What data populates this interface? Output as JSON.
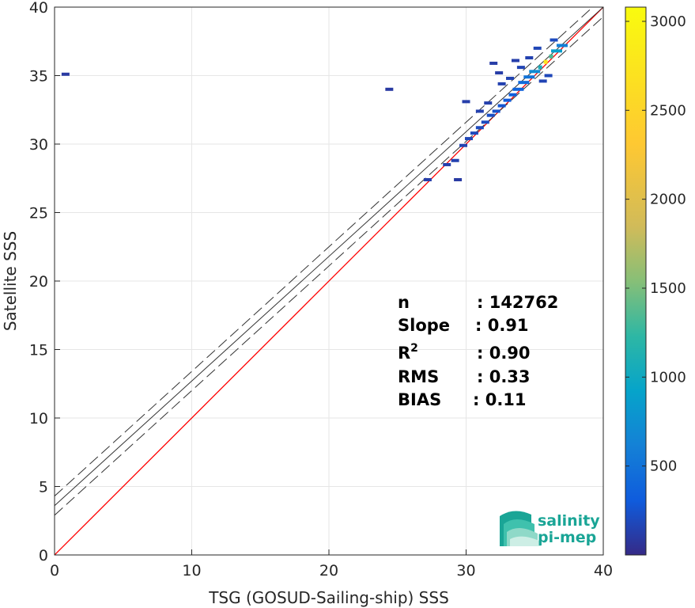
{
  "chart_data": {
    "type": "heatmap",
    "title": "",
    "xlabel": "TSG (GOSUD-Sailing-ship) SSS",
    "ylabel": "Satellite SSS",
    "xlim": [
      0,
      40
    ],
    "ylim": [
      0,
      40
    ],
    "x_ticks": [
      "0",
      "10",
      "20",
      "30",
      "40"
    ],
    "y_ticks": [
      "0",
      "5",
      "10",
      "15",
      "20",
      "25",
      "30",
      "35",
      "40"
    ],
    "grid": true,
    "colorbar": {
      "range": [
        0,
        3080
      ],
      "ticks": [
        "500",
        "1000",
        "1500",
        "2000",
        "2500",
        "3000"
      ],
      "colormap": "parula"
    },
    "reference_line": {
      "slope": 1,
      "intercept": 0,
      "color": "#ff0000"
    },
    "regression_line": {
      "slope": 0.91,
      "intercept": 3.6,
      "band_offset": 0.7
    },
    "density_points": [
      {
        "x": 35.8,
        "y": 36.0,
        "v": 3000
      },
      {
        "x": 36.2,
        "y": 36.4,
        "v": 1400
      },
      {
        "x": 35.4,
        "y": 35.6,
        "v": 1100
      },
      {
        "x": 36.6,
        "y": 36.8,
        "v": 900
      },
      {
        "x": 35.0,
        "y": 35.3,
        "v": 700
      },
      {
        "x": 37.0,
        "y": 37.2,
        "v": 600
      },
      {
        "x": 34.6,
        "y": 34.9,
        "v": 500
      },
      {
        "x": 34.2,
        "y": 34.5,
        "v": 400
      },
      {
        "x": 33.8,
        "y": 34.0,
        "v": 350
      },
      {
        "x": 33.4,
        "y": 33.6,
        "v": 300
      },
      {
        "x": 33.0,
        "y": 33.2,
        "v": 260
      },
      {
        "x": 32.6,
        "y": 32.8,
        "v": 230
      },
      {
        "x": 32.2,
        "y": 32.4,
        "v": 200
      },
      {
        "x": 31.8,
        "y": 32.1,
        "v": 180
      },
      {
        "x": 31.4,
        "y": 31.6,
        "v": 160
      },
      {
        "x": 31.0,
        "y": 31.2,
        "v": 150
      },
      {
        "x": 30.6,
        "y": 30.8,
        "v": 140
      },
      {
        "x": 30.2,
        "y": 30.4,
        "v": 120
      },
      {
        "x": 29.8,
        "y": 29.9,
        "v": 100
      },
      {
        "x": 29.2,
        "y": 28.8,
        "v": 90
      },
      {
        "x": 28.6,
        "y": 28.5,
        "v": 80
      },
      {
        "x": 27.2,
        "y": 27.4,
        "v": 70
      },
      {
        "x": 32.0,
        "y": 35.9,
        "v": 60
      },
      {
        "x": 33.6,
        "y": 36.1,
        "v": 70
      },
      {
        "x": 34.6,
        "y": 36.3,
        "v": 90
      },
      {
        "x": 35.2,
        "y": 37.0,
        "v": 120
      },
      {
        "x": 36.4,
        "y": 37.6,
        "v": 150
      },
      {
        "x": 32.4,
        "y": 35.2,
        "v": 60
      },
      {
        "x": 31.6,
        "y": 33.0,
        "v": 80
      },
      {
        "x": 30.0,
        "y": 33.1,
        "v": 70
      },
      {
        "x": 32.6,
        "y": 34.4,
        "v": 90
      },
      {
        "x": 34.0,
        "y": 35.6,
        "v": 110
      },
      {
        "x": 36.0,
        "y": 35.0,
        "v": 130
      },
      {
        "x": 35.6,
        "y": 34.6,
        "v": 110
      },
      {
        "x": 31.0,
        "y": 32.4,
        "v": 90
      },
      {
        "x": 33.2,
        "y": 34.8,
        "v": 100
      },
      {
        "x": 24.4,
        "y": 34.0,
        "v": 40
      },
      {
        "x": 0.8,
        "y": 35.1,
        "v": 40
      },
      {
        "x": 29.4,
        "y": 27.4,
        "v": 40
      }
    ],
    "stats": [
      {
        "label": "n",
        "value": ": 142762"
      },
      {
        "label": "Slope",
        "value": ": 0.91"
      },
      {
        "label": "R",
        "sup": "2",
        "value": ": 0.90"
      },
      {
        "label": "RMS",
        "value": ": 0.33"
      },
      {
        "label": "BIAS",
        "value": ": 0.11"
      }
    ]
  },
  "logo": {
    "line1": "salinity",
    "line2": "pi-mep"
  }
}
